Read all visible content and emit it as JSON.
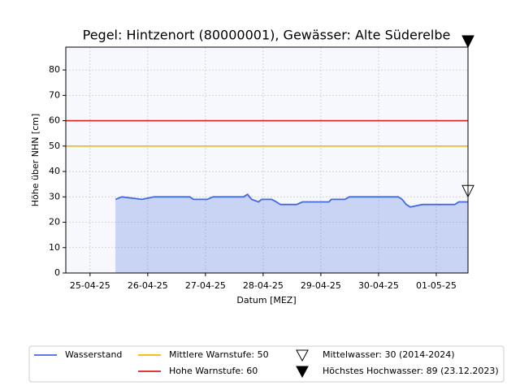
{
  "chart_data": {
    "type": "line",
    "title": "Pegel:  Hintzenort (80000001), Gewässer:  Alte Süderelbe",
    "xlabel": "Datum [MEZ]",
    "ylabel": "Höhe über NHN [cm]",
    "x": [
      0.44,
      0.55,
      0.9,
      1.11,
      1.73,
      1.79,
      2.03,
      2.13,
      2.66,
      2.73,
      2.8,
      2.92,
      2.97,
      3.15,
      3.23,
      3.3,
      3.58,
      3.68,
      4.14,
      4.18,
      4.42,
      4.49,
      5.34,
      5.41,
      5.48,
      5.55,
      5.76,
      6.32,
      6.39,
      6.55
    ],
    "series": [
      {
        "name": "Wasserstand",
        "color": "#4169e1",
        "values": [
          29,
          30,
          29,
          30,
          30,
          29,
          29,
          30,
          30,
          31,
          29,
          28,
          29,
          29,
          28,
          27,
          27,
          28,
          28,
          29,
          29,
          30,
          30,
          29,
          27,
          26,
          27,
          27,
          28,
          28
        ]
      }
    ],
    "hlines": [
      {
        "name": "Mittlere Warnstufe: 50",
        "value": 50,
        "color": "#f5b700"
      },
      {
        "name": "Hohe Warnstufe: 60",
        "value": 60,
        "color": "#d62020"
      }
    ],
    "markers": [
      {
        "name": "Mittelwasser: 30 (2014-2024)",
        "value": 30,
        "filled": false
      },
      {
        "name": "Höchstes Hochwasser: 89 (23.12.2023)",
        "value": 89,
        "filled": true
      }
    ],
    "xlim": [
      -0.42,
      6.55
    ],
    "ylim": [
      0,
      89
    ],
    "xticks": [
      {
        "value": 0,
        "label": "25-04-25"
      },
      {
        "value": 1,
        "label": "26-04-25"
      },
      {
        "value": 2,
        "label": "27-04-25"
      },
      {
        "value": 3,
        "label": "28-04-25"
      },
      {
        "value": 4,
        "label": "29-04-25"
      },
      {
        "value": 5,
        "label": "30-04-25"
      },
      {
        "value": 6,
        "label": "01-05-25"
      }
    ],
    "yticks": [
      0,
      10,
      20,
      30,
      40,
      50,
      60,
      70,
      80
    ],
    "grid": true
  }
}
